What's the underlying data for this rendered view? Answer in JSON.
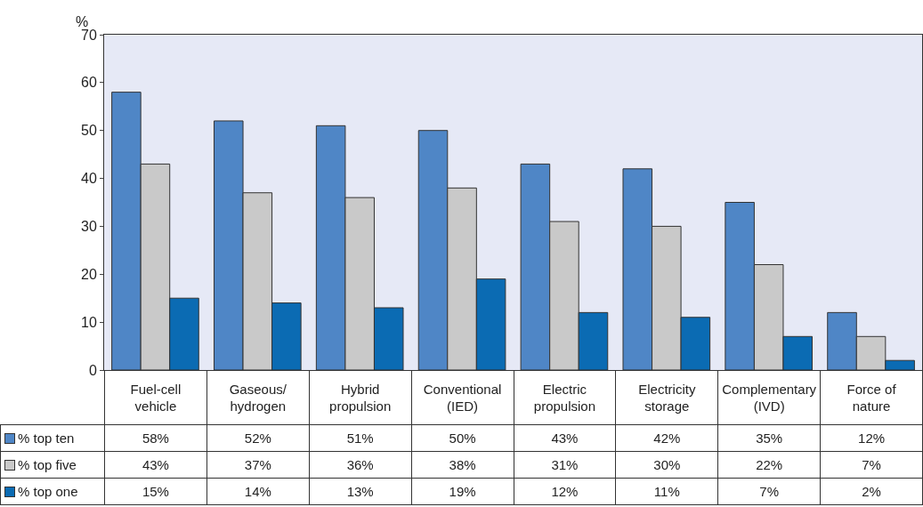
{
  "chart_data": {
    "type": "bar",
    "ylabel": "%",
    "categories": [
      "Fuel-cell\nvehicle",
      "Gaseous/\nhydrogen",
      "Hybrid\npropulsion",
      "Conventional\n(IED)",
      "Electric\npropulsion",
      "Electricity\nstorage",
      "Complementary\n(IVD)",
      "Force of\nnature"
    ],
    "series": [
      {
        "name": "% top ten",
        "color": "#4f86c6",
        "values": [
          58,
          52,
          51,
          50,
          43,
          42,
          35,
          12
        ],
        "value_labels": [
          "58%",
          "52%",
          "51%",
          "50%",
          "43%",
          "42%",
          "35%",
          "12%"
        ]
      },
      {
        "name": "% top five",
        "color": "#c9c9c9",
        "values": [
          43,
          37,
          36,
          38,
          31,
          30,
          22,
          7
        ],
        "value_labels": [
          "43%",
          "37%",
          "36%",
          "38%",
          "31%",
          "30%",
          "22%",
          "7%"
        ]
      },
      {
        "name": "% top one",
        "color": "#0b6bb3",
        "values": [
          15,
          14,
          13,
          19,
          12,
          11,
          7,
          2
        ],
        "value_labels": [
          "15%",
          "14%",
          "13%",
          "19%",
          "12%",
          "11%",
          "7%",
          "2%"
        ]
      }
    ],
    "legend": "bottom left",
    "ylim": [
      0,
      70
    ],
    "yticks": [
      0,
      10,
      20,
      30,
      40,
      50,
      60,
      70
    ]
  }
}
